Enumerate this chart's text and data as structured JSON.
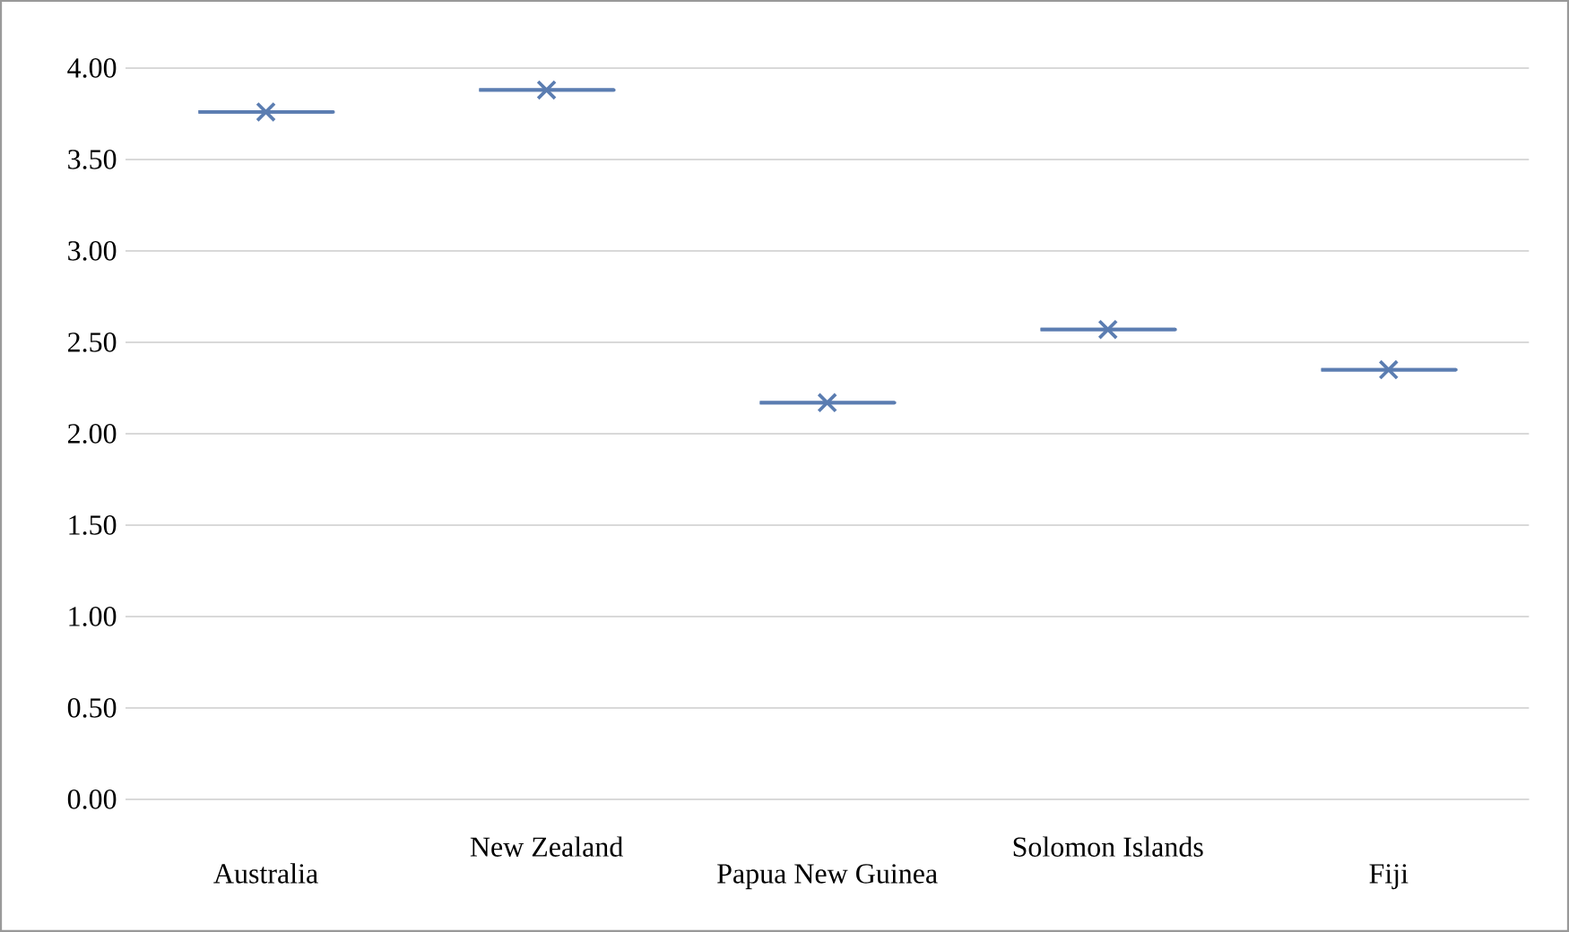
{
  "chart_data": {
    "type": "box",
    "categories": [
      "Australia",
      "New Zealand",
      "Papua New Guinea",
      "Solomon Islands",
      "Fiji"
    ],
    "boxes": [
      {
        "low": 3.76,
        "q1": 3.76,
        "median": 3.76,
        "q3": 3.76,
        "high": 3.76,
        "mean": 3.76
      },
      {
        "low": 3.88,
        "q1": 3.88,
        "median": 3.88,
        "q3": 3.88,
        "high": 3.88,
        "mean": 3.88
      },
      {
        "low": 2.17,
        "q1": 2.17,
        "median": 2.17,
        "q3": 2.17,
        "high": 2.17,
        "mean": 2.17
      },
      {
        "low": 2.57,
        "q1": 2.57,
        "median": 2.57,
        "q3": 2.57,
        "high": 2.57,
        "mean": 2.57
      },
      {
        "low": 2.35,
        "q1": 2.35,
        "median": 2.35,
        "q3": 2.35,
        "high": 2.35,
        "mean": 2.35
      }
    ],
    "color": "#5b7db1",
    "marker": "cross",
    "ylim": [
      0,
      4
    ],
    "yticks": [
      {
        "value": 0,
        "label": "0.00"
      },
      {
        "value": 0.5,
        "label": "0.50"
      },
      {
        "value": 1,
        "label": "1.00"
      },
      {
        "value": 1.5,
        "label": "1.50"
      },
      {
        "value": 2,
        "label": "2.00"
      },
      {
        "value": 2.5,
        "label": "2.50"
      },
      {
        "value": 3,
        "label": "3.00"
      },
      {
        "value": 3.5,
        "label": "3.50"
      },
      {
        "value": 4,
        "label": "4.00"
      }
    ],
    "grid": "y"
  }
}
